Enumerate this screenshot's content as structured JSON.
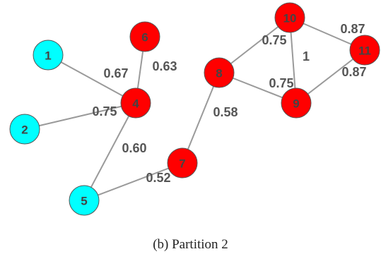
{
  "caption": "(b) Partition 2",
  "colors": {
    "partition_a": "#00ffff",
    "partition_b": "#ff0000"
  },
  "nodes": [
    {
      "id": "1",
      "group": "partition_a"
    },
    {
      "id": "2",
      "group": "partition_a"
    },
    {
      "id": "4",
      "group": "partition_b"
    },
    {
      "id": "5",
      "group": "partition_a"
    },
    {
      "id": "6",
      "group": "partition_b"
    },
    {
      "id": "7",
      "group": "partition_b"
    },
    {
      "id": "8",
      "group": "partition_b"
    },
    {
      "id": "9",
      "group": "partition_b"
    },
    {
      "id": "10",
      "group": "partition_b"
    },
    {
      "id": "11",
      "group": "partition_b"
    }
  ],
  "edges": [
    {
      "source": "1",
      "target": "4",
      "weight": "0.67"
    },
    {
      "source": "2",
      "target": "4",
      "weight": "0.75"
    },
    {
      "source": "6",
      "target": "4",
      "weight": "0.63"
    },
    {
      "source": "5",
      "target": "4",
      "weight": "0.60"
    },
    {
      "source": "5",
      "target": "7",
      "weight": "0.52"
    },
    {
      "source": "7",
      "target": "8",
      "weight": "0.58"
    },
    {
      "source": "8",
      "target": "10",
      "weight": "0.75"
    },
    {
      "source": "8",
      "target": "9",
      "weight": "0.75"
    },
    {
      "source": "10",
      "target": "9",
      "weight": "1"
    },
    {
      "source": "10",
      "target": "11",
      "weight": "0.87"
    },
    {
      "source": "9",
      "target": "11",
      "weight": "0.87"
    }
  ]
}
